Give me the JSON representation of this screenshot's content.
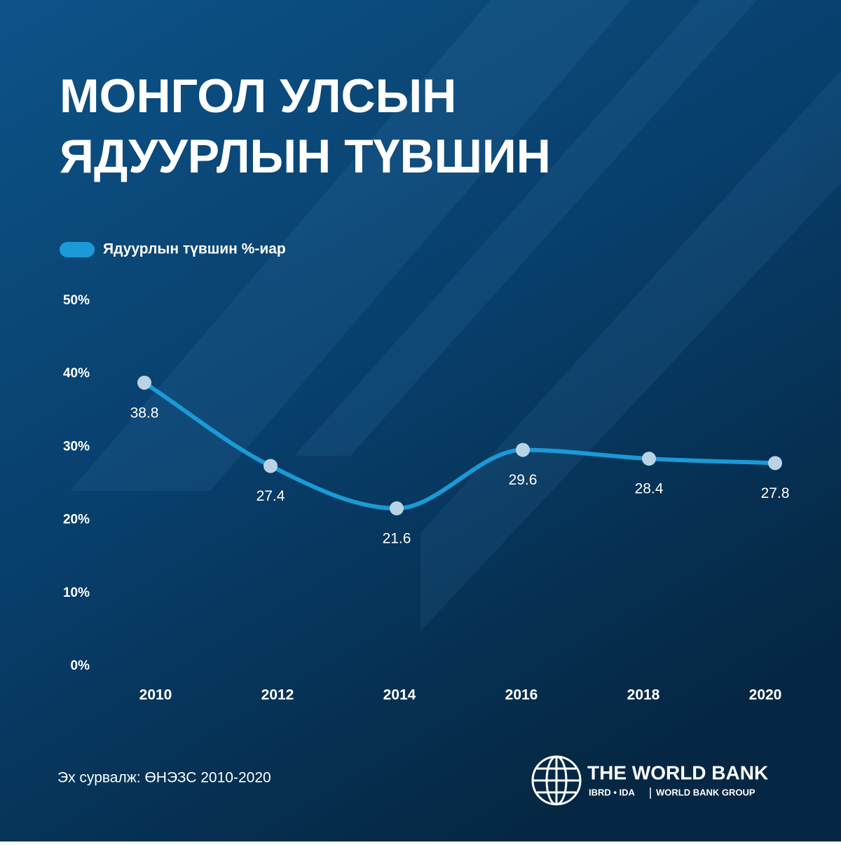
{
  "chart_data": {
    "type": "line",
    "title": [
      "МОНГОЛ УЛСЫН",
      "ЯДУУРЛЫН ТҮВШИН"
    ],
    "categories": [
      "2010",
      "2012",
      "2014",
      "2016",
      "2018",
      "2020"
    ],
    "series": [
      {
        "name": "Ядуурлын түвшин %-иар",
        "color": "#1a9ad6",
        "values": [
          38.8,
          27.4,
          21.6,
          29.6,
          28.4,
          27.8
        ]
      }
    ],
    "point_color": "#b9d3e6",
    "ylim": [
      0,
      50
    ],
    "yticks": [
      {
        "value": 0,
        "label": "0%"
      },
      {
        "value": 10,
        "label": "10%"
      },
      {
        "value": 20,
        "label": "20%"
      },
      {
        "value": 30,
        "label": "30%"
      },
      {
        "value": 40,
        "label": "40%"
      },
      {
        "value": 50,
        "label": "50%"
      }
    ],
    "grid": false,
    "source": "Эх сурвалж: ӨНЭЗС 2010-2020"
  },
  "logo": {
    "name": "THE WORLD BANK",
    "sub1": "IBRD • IDA",
    "sub2": "WORLD BANK GROUP"
  }
}
